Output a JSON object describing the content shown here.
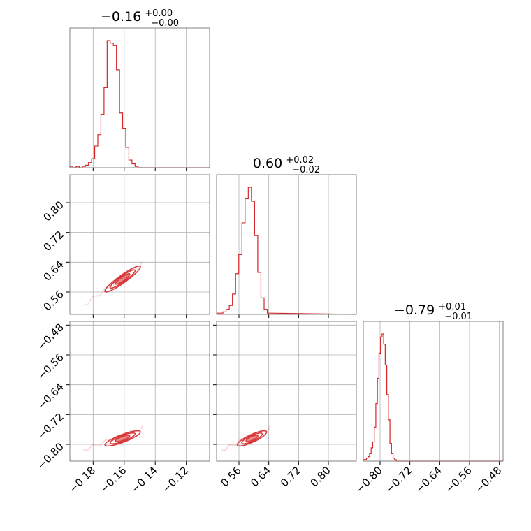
{
  "chart_data": {
    "type": "corner",
    "colors": {
      "accent": "#d62728",
      "grid": "#b0b0b0",
      "frame": "#808080"
    },
    "grid": true,
    "parameters": [
      {
        "title_value": "−0.16",
        "title_plus": "+0.00",
        "title_minus": "−0.00",
        "range": [
          -0.195,
          -0.105
        ],
        "ticks": [
          -0.18,
          -0.16,
          -0.14,
          -0.12
        ],
        "tick_labels": [
          "−0.18",
          "−0.16",
          "−0.14",
          "−0.12"
        ],
        "hist": {
          "edges": [
            -0.195,
            -0.193,
            -0.191,
            -0.189,
            -0.187,
            -0.185,
            -0.183,
            -0.181,
            -0.179,
            -0.177,
            -0.175,
            -0.173,
            -0.171,
            -0.169,
            -0.167,
            -0.165,
            -0.163,
            -0.161,
            -0.159,
            -0.157,
            -0.155,
            -0.153,
            -0.151,
            -0.149,
            -0.147,
            -0.145,
            -0.143
          ],
          "values": [
            0.01,
            0,
            0.01,
            0,
            0.01,
            0.02,
            0.04,
            0.07,
            0.17,
            0.26,
            0.42,
            0.63,
            1.0,
            0.98,
            0.96,
            0.77,
            0.43,
            0.31,
            0.16,
            0.06,
            0.03,
            0.01,
            0,
            0,
            0,
            0
          ]
        }
      },
      {
        "title_value": "0.60",
        "title_plus": "+0.02",
        "title_minus": "−0.02",
        "range": [
          0.5,
          0.875
        ],
        "ticks": [
          0.56,
          0.64,
          0.72,
          0.8
        ],
        "tick_labels": [
          "0.56",
          "0.64",
          "0.72",
          "0.80"
        ],
        "hist": {
          "edges": [
            0.5,
            0.5085,
            0.517,
            0.5255,
            0.534,
            0.5425,
            0.551,
            0.5595,
            0.568,
            0.5765,
            0.585,
            0.5935,
            0.602,
            0.6105,
            0.619,
            0.6275,
            0.636,
            0.6445
          ],
          "values": [
            0.01,
            0.01,
            0.02,
            0.04,
            0.07,
            0.16,
            0.32,
            0.47,
            0.72,
            0.91,
            1.0,
            0.89,
            0.62,
            0.33,
            0.13,
            0.04,
            0.01
          ]
        },
        "ellipses": {
          "center": [
            -0.161,
            0.595
          ],
          "extent_low": [
            -0.186,
            0.525
          ],
          "extent_high": [
            -0.148,
            0.638
          ],
          "levels": [
            0.4,
            0.7,
            1.0
          ]
        }
      },
      {
        "title_value": "−0.79",
        "title_plus": "+0.01",
        "title_minus": "−0.01",
        "range": [
          -0.845,
          -0.47
        ],
        "ticks": [
          -0.8,
          -0.72,
          -0.64,
          -0.56,
          -0.48
        ],
        "tick_labels": [
          "−0.80",
          "−0.72",
          "−0.64",
          "−0.56",
          "−0.48"
        ],
        "hist": {
          "edges": [
            -0.845,
            -0.8408,
            -0.8366,
            -0.8324,
            -0.8282,
            -0.824,
            -0.8198,
            -0.8156,
            -0.8114,
            -0.8072,
            -0.803,
            -0.7988,
            -0.7946,
            -0.7904,
            -0.7862,
            -0.782,
            -0.7778,
            -0.7736,
            -0.7694,
            -0.7652,
            -0.761,
            -0.7568,
            -0.7526
          ],
          "values": [
            0.01,
            0.01,
            0.02,
            0.03,
            0.05,
            0.09,
            0.13,
            0.23,
            0.39,
            0.56,
            0.73,
            0.84,
            0.86,
            0.79,
            0.65,
            0.45,
            0.28,
            0.12,
            0.05,
            0.02,
            0.01,
            0.0
          ]
        },
        "ellipses_vs_p1": {
          "center": [
            -0.161,
            -0.784
          ],
          "extent_low": [
            -0.186,
            -0.815
          ],
          "extent_high": [
            -0.148,
            -0.755
          ],
          "levels": [
            0.4,
            0.7,
            1.0
          ]
        },
        "ellipses_vs_p2": {
          "center": [
            0.595,
            -0.784
          ],
          "extent_low": [
            0.515,
            -0.815
          ],
          "extent_high": [
            0.645,
            -0.755
          ],
          "levels": [
            0.4,
            0.7,
            1.0
          ]
        }
      }
    ]
  }
}
